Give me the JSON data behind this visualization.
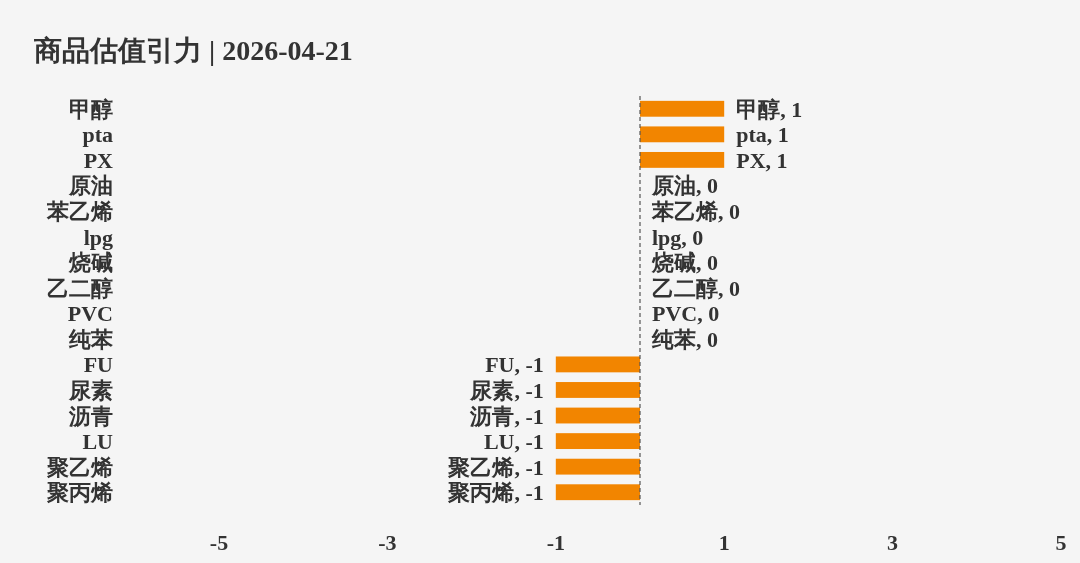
{
  "chart_data": {
    "type": "bar",
    "orientation": "horizontal",
    "title": "商品估值引力 | 2026-04-21",
    "categories": [
      "甲醇",
      "pta",
      "PX",
      "原油",
      "苯乙烯",
      "lpg",
      "烧碱",
      "乙二醇",
      "PVC",
      "纯苯",
      "FU",
      "尿素",
      "沥青",
      "LU",
      "聚乙烯",
      "聚丙烯"
    ],
    "values": [
      1,
      1,
      1,
      0,
      0,
      0,
      0,
      0,
      0,
      0,
      -1,
      -1,
      -1,
      -1,
      -1,
      -1
    ],
    "value_labels": [
      "甲醇, 1",
      "pta, 1",
      "PX, 1",
      "原油, 0",
      "苯乙烯, 0",
      "lpg, 0",
      "烧碱, 0",
      "乙二醇, 0",
      "PVC, 0",
      "纯苯, 0",
      "FU, -1",
      "尿素, -1",
      "沥青, -1",
      "LU, -1",
      "聚乙烯, -1",
      "聚丙烯, -1"
    ],
    "color": "#f28500",
    "xlim": [
      -5,
      5
    ],
    "xticks": [
      -5,
      -3,
      -1,
      1,
      3,
      5
    ],
    "ref_lines": [
      {
        "axis": "x",
        "value": 0,
        "line_style": "dashed",
        "color": "#555555"
      }
    ],
    "grid": false
  }
}
